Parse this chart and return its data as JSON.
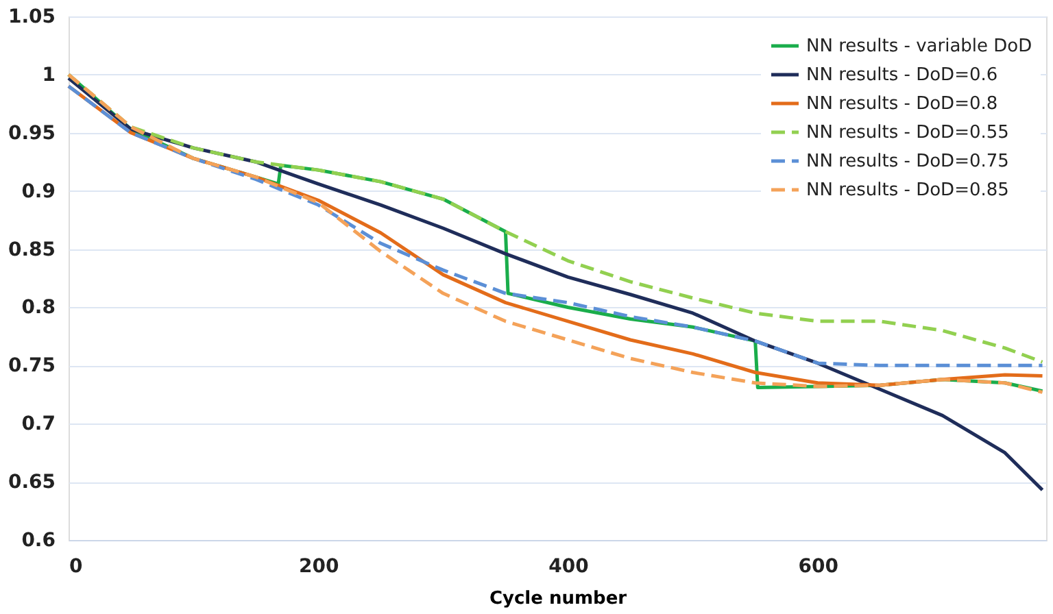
{
  "chart_data": {
    "type": "line",
    "xlabel": "Cycle number",
    "xlim": [
      0,
      783
    ],
    "xticks": [
      0,
      200,
      400,
      600
    ],
    "ylim": [
      0.6,
      1.05
    ],
    "yticks": [
      0.6,
      0.65,
      0.7,
      0.75,
      0.8,
      0.85,
      0.9,
      0.95,
      1,
      1.05
    ],
    "grid": "y",
    "legend": "top right",
    "marker": "none",
    "series": [
      {
        "name": "NN results - variable DoD",
        "color": "#1aad4b",
        "line_style": "solid",
        "x": [
          0,
          50,
          100,
          150,
          168,
          170,
          200,
          250,
          300,
          350,
          352,
          400,
          450,
          500,
          550,
          552,
          600,
          650,
          700,
          750,
          780
        ],
        "values": [
          1.0,
          0.953,
          0.928,
          0.912,
          0.906,
          0.922,
          0.918,
          0.908,
          0.893,
          0.865,
          0.812,
          0.8,
          0.79,
          0.783,
          0.771,
          0.731,
          0.732,
          0.733,
          0.738,
          0.735,
          0.728
        ]
      },
      {
        "name": "NN results - DoD=0.6",
        "color": "#1f2d5a",
        "line_style": "solid",
        "x": [
          0,
          50,
          100,
          150,
          200,
          250,
          300,
          350,
          400,
          450,
          500,
          550,
          600,
          640,
          700,
          750,
          780
        ],
        "values": [
          0.997,
          0.953,
          0.937,
          0.925,
          0.906,
          0.888,
          0.868,
          0.846,
          0.826,
          0.811,
          0.795,
          0.771,
          0.752,
          0.734,
          0.707,
          0.675,
          0.643
        ]
      },
      {
        "name": "NN results - DoD=0.8",
        "color": "#e36c1a",
        "line_style": "solid",
        "x": [
          0,
          50,
          100,
          150,
          200,
          250,
          300,
          350,
          400,
          450,
          500,
          550,
          600,
          650,
          700,
          750,
          780
        ],
        "values": [
          0.99,
          0.95,
          0.928,
          0.912,
          0.892,
          0.864,
          0.828,
          0.804,
          0.788,
          0.772,
          0.76,
          0.744,
          0.735,
          0.733,
          0.738,
          0.742,
          0.741
        ]
      },
      {
        "name": "NN results - DoD=0.55",
        "color": "#92d050",
        "line_style": "dashed",
        "x": [
          0,
          50,
          100,
          150,
          200,
          250,
          300,
          350,
          400,
          450,
          500,
          550,
          600,
          650,
          700,
          750,
          780
        ],
        "values": [
          1.0,
          0.955,
          0.937,
          0.925,
          0.918,
          0.908,
          0.893,
          0.865,
          0.84,
          0.822,
          0.808,
          0.795,
          0.788,
          0.788,
          0.78,
          0.765,
          0.753
        ]
      },
      {
        "name": "NN results - DoD=0.75",
        "color": "#5b8fd6",
        "line_style": "dashed",
        "x": [
          0,
          50,
          100,
          150,
          200,
          250,
          300,
          350,
          400,
          450,
          500,
          550,
          600,
          650,
          700,
          780
        ],
        "values": [
          0.99,
          0.95,
          0.928,
          0.91,
          0.888,
          0.855,
          0.832,
          0.812,
          0.804,
          0.792,
          0.783,
          0.771,
          0.752,
          0.75,
          0.75,
          0.75
        ]
      },
      {
        "name": "NN results - DoD=0.85",
        "color": "#f4a259",
        "line_style": "dashed",
        "x": [
          0,
          50,
          100,
          150,
          200,
          250,
          300,
          350,
          400,
          450,
          500,
          550,
          600,
          650,
          700,
          750,
          780
        ],
        "values": [
          1.0,
          0.955,
          0.928,
          0.912,
          0.89,
          0.848,
          0.812,
          0.788,
          0.772,
          0.756,
          0.744,
          0.735,
          0.732,
          0.733,
          0.738,
          0.735,
          0.727
        ]
      }
    ]
  }
}
